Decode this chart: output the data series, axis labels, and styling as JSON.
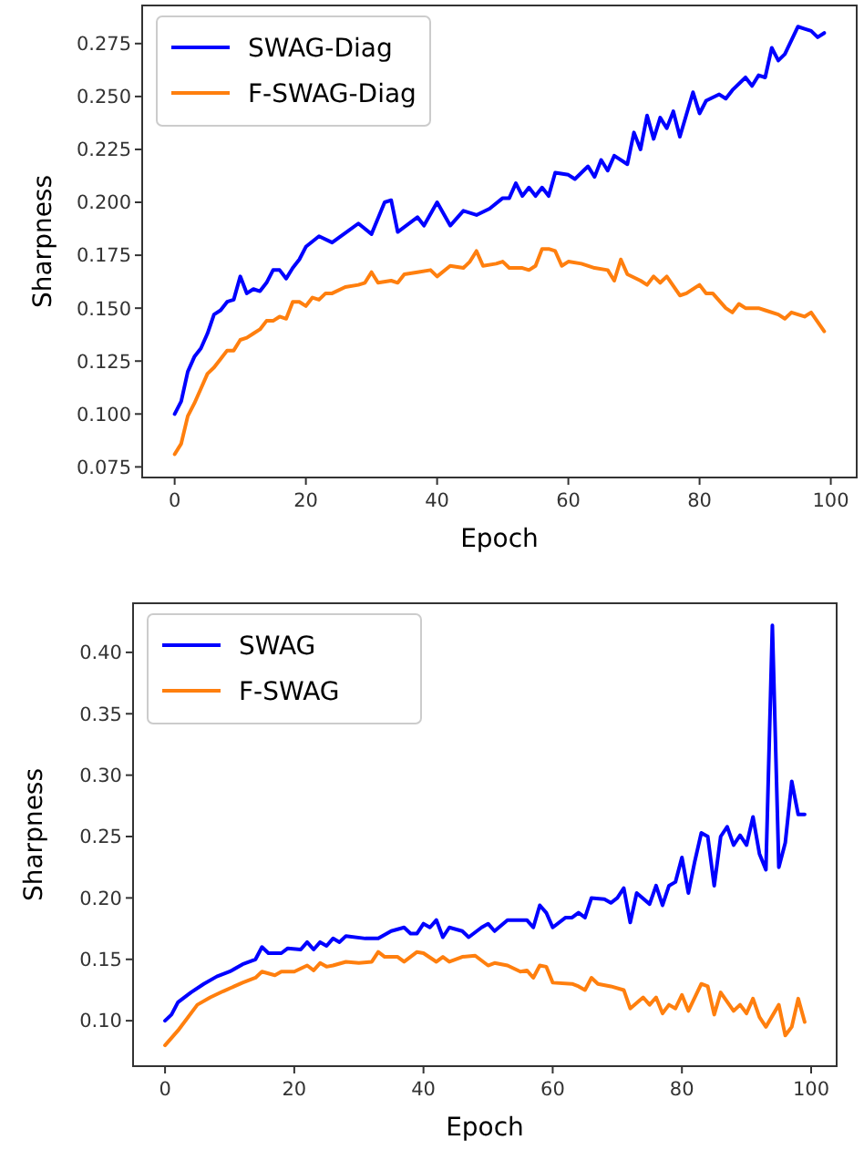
{
  "chart_data": [
    {
      "type": "line",
      "xlabel": "Epoch",
      "ylabel": "Sharpness",
      "xlim": [
        -4.95,
        103.95
      ],
      "ylim": [
        0.07,
        0.293
      ],
      "xticks": [
        0,
        20,
        40,
        60,
        80,
        100
      ],
      "yticks": [
        0.075,
        {
          "value": 0.1,
          "label": "0.100"
        },
        0.125,
        {
          "value": 0.15,
          "label": "0.150"
        },
        0.175,
        {
          "value": 0.2,
          "label": "0.200"
        },
        0.225,
        {
          "value": 0.25,
          "label": "0.250"
        },
        0.275
      ],
      "grid": false,
      "legend": "top left",
      "marker": "none",
      "line_style": "solid",
      "series": [
        {
          "name": "SWAG-Diag",
          "color": "#0000ff",
          "x": [
            0,
            1,
            2,
            3,
            4,
            5,
            6,
            7,
            8,
            9,
            10,
            11,
            12,
            13,
            14,
            15,
            16,
            17,
            18,
            19,
            20,
            22,
            24,
            28,
            30,
            32,
            33,
            34,
            37,
            38,
            40,
            42,
            44,
            46,
            48,
            50,
            51,
            52,
            53,
            54,
            55,
            56,
            57,
            58,
            60,
            61,
            63,
            64,
            65,
            66,
            67,
            69,
            70,
            71,
            72,
            73,
            74,
            75,
            76,
            77,
            79,
            80,
            81,
            83,
            84,
            85,
            87,
            88,
            89,
            90,
            91,
            92,
            93,
            95,
            96,
            97,
            98,
            99
          ],
          "values": [
            0.1,
            0.106,
            0.12,
            0.127,
            0.131,
            0.138,
            0.147,
            0.149,
            0.153,
            0.154,
            0.165,
            0.157,
            0.159,
            0.158,
            0.162,
            0.168,
            0.168,
            0.164,
            0.169,
            0.173,
            0.179,
            0.184,
            0.181,
            0.19,
            0.185,
            0.2,
            0.201,
            0.186,
            0.193,
            0.189,
            0.2,
            0.189,
            0.196,
            0.194,
            0.197,
            0.202,
            0.202,
            0.209,
            0.203,
            0.207,
            0.203,
            0.207,
            0.203,
            0.214,
            0.213,
            0.211,
            0.217,
            0.212,
            0.22,
            0.215,
            0.222,
            0.218,
            0.233,
            0.225,
            0.241,
            0.23,
            0.24,
            0.235,
            0.243,
            0.231,
            0.252,
            0.242,
            0.248,
            0.251,
            0.249,
            0.253,
            0.259,
            0.255,
            0.26,
            0.259,
            0.273,
            0.267,
            0.27,
            0.283,
            0.282,
            0.281,
            0.278,
            0.28
          ]
        },
        {
          "name": "F-SWAG-Diag",
          "color": "#ff7f0e",
          "x": [
            0,
            1,
            2,
            3,
            4,
            5,
            6,
            7,
            8,
            9,
            10,
            11,
            12,
            13,
            14,
            15,
            16,
            17,
            18,
            19,
            20,
            21,
            22,
            23,
            24,
            26,
            28,
            29,
            30,
            31,
            33,
            34,
            35,
            37,
            39,
            40,
            42,
            44,
            45,
            46,
            47,
            49,
            50,
            51,
            53,
            54,
            55,
            56,
            57,
            58,
            59,
            60,
            62,
            64,
            66,
            67,
            68,
            69,
            71,
            72,
            73,
            74,
            75,
            77,
            78,
            80,
            81,
            82,
            84,
            85,
            86,
            87,
            89,
            90,
            92,
            93,
            94,
            96,
            97,
            99
          ],
          "values": [
            0.081,
            0.086,
            0.099,
            0.105,
            0.112,
            0.119,
            0.122,
            0.126,
            0.13,
            0.13,
            0.135,
            0.136,
            0.138,
            0.14,
            0.144,
            0.144,
            0.146,
            0.145,
            0.153,
            0.153,
            0.151,
            0.155,
            0.154,
            0.157,
            0.157,
            0.16,
            0.161,
            0.162,
            0.167,
            0.162,
            0.163,
            0.162,
            0.166,
            0.167,
            0.168,
            0.165,
            0.17,
            0.169,
            0.172,
            0.177,
            0.17,
            0.171,
            0.172,
            0.169,
            0.169,
            0.168,
            0.17,
            0.178,
            0.178,
            0.177,
            0.17,
            0.172,
            0.171,
            0.169,
            0.168,
            0.163,
            0.173,
            0.166,
            0.163,
            0.161,
            0.165,
            0.162,
            0.165,
            0.156,
            0.157,
            0.161,
            0.157,
            0.157,
            0.15,
            0.148,
            0.152,
            0.15,
            0.15,
            0.149,
            0.147,
            0.145,
            0.148,
            0.146,
            0.148,
            0.139
          ]
        }
      ]
    },
    {
      "type": "line",
      "xlabel": "Epoch",
      "ylabel": "Sharpness",
      "xlim": [
        -4.95,
        103.95
      ],
      "ylim": [
        0.063,
        0.44
      ],
      "xticks": [
        0,
        20,
        40,
        60,
        80,
        100
      ],
      "yticks": [
        {
          "value": 0.1,
          "label": "0.10"
        },
        0.15,
        {
          "value": 0.2,
          "label": "0.20"
        },
        0.25,
        {
          "value": 0.3,
          "label": "0.30"
        },
        0.35,
        {
          "value": 0.4,
          "label": "0.40"
        }
      ],
      "grid": false,
      "legend": "top left",
      "marker": "none",
      "line_style": "solid",
      "series": [
        {
          "name": "SWAG",
          "color": "#0000ff",
          "x": [
            0,
            1,
            2,
            4,
            6,
            8,
            10,
            12,
            14,
            15,
            16,
            18,
            19,
            21,
            22,
            23,
            24,
            25,
            26,
            27,
            28,
            31,
            33,
            35,
            37,
            38,
            39,
            40,
            41,
            42,
            43,
            44,
            46,
            47,
            49,
            50,
            51,
            53,
            56,
            57,
            58,
            59,
            60,
            62,
            63,
            64,
            65,
            66,
            68,
            69,
            70,
            71,
            72,
            73,
            75,
            76,
            77,
            78,
            79,
            80,
            81,
            82,
            83,
            84,
            85,
            86,
            87,
            88,
            89,
            90,
            91,
            92,
            93,
            94,
            95,
            96,
            97,
            98,
            99
          ],
          "values": [
            0.1,
            0.105,
            0.115,
            0.123,
            0.13,
            0.136,
            0.14,
            0.146,
            0.15,
            0.16,
            0.155,
            0.155,
            0.159,
            0.158,
            0.164,
            0.158,
            0.164,
            0.161,
            0.167,
            0.164,
            0.169,
            0.167,
            0.167,
            0.173,
            0.176,
            0.171,
            0.171,
            0.179,
            0.176,
            0.182,
            0.168,
            0.176,
            0.173,
            0.168,
            0.176,
            0.179,
            0.173,
            0.182,
            0.182,
            0.176,
            0.194,
            0.188,
            0.176,
            0.184,
            0.184,
            0.188,
            0.184,
            0.2,
            0.199,
            0.196,
            0.2,
            0.208,
            0.18,
            0.204,
            0.195,
            0.21,
            0.194,
            0.21,
            0.213,
            0.233,
            0.204,
            0.23,
            0.253,
            0.25,
            0.21,
            0.25,
            0.258,
            0.243,
            0.251,
            0.243,
            0.266,
            0.236,
            0.223,
            0.422,
            0.225,
            0.245,
            0.295,
            0.268,
            0.268
          ]
        },
        {
          "name": "F-SWAG",
          "color": "#ff7f0e",
          "x": [
            0,
            2,
            5,
            7,
            9,
            12,
            14,
            15,
            17,
            18,
            20,
            22,
            23,
            24,
            25,
            26,
            28,
            30,
            32,
            33,
            34,
            36,
            37,
            39,
            40,
            42,
            43,
            44,
            46,
            48,
            50,
            51,
            53,
            55,
            56,
            57,
            58,
            59,
            60,
            63,
            64,
            65,
            66,
            67,
            69,
            71,
            72,
            74,
            75,
            76,
            77,
            78,
            79,
            80,
            81,
            83,
            84,
            85,
            86,
            88,
            89,
            90,
            91,
            92,
            93,
            95,
            96,
            97,
            98,
            99
          ],
          "values": [
            0.08,
            0.092,
            0.113,
            0.119,
            0.124,
            0.131,
            0.135,
            0.14,
            0.137,
            0.14,
            0.14,
            0.145,
            0.141,
            0.147,
            0.144,
            0.145,
            0.148,
            0.147,
            0.148,
            0.156,
            0.152,
            0.152,
            0.148,
            0.156,
            0.155,
            0.148,
            0.152,
            0.148,
            0.152,
            0.153,
            0.145,
            0.147,
            0.145,
            0.14,
            0.141,
            0.135,
            0.145,
            0.144,
            0.131,
            0.13,
            0.128,
            0.125,
            0.135,
            0.13,
            0.128,
            0.125,
            0.11,
            0.119,
            0.113,
            0.119,
            0.106,
            0.113,
            0.11,
            0.121,
            0.108,
            0.13,
            0.128,
            0.105,
            0.123,
            0.108,
            0.113,
            0.106,
            0.118,
            0.103,
            0.095,
            0.113,
            0.088,
            0.095,
            0.118,
            0.099
          ]
        }
      ]
    }
  ]
}
